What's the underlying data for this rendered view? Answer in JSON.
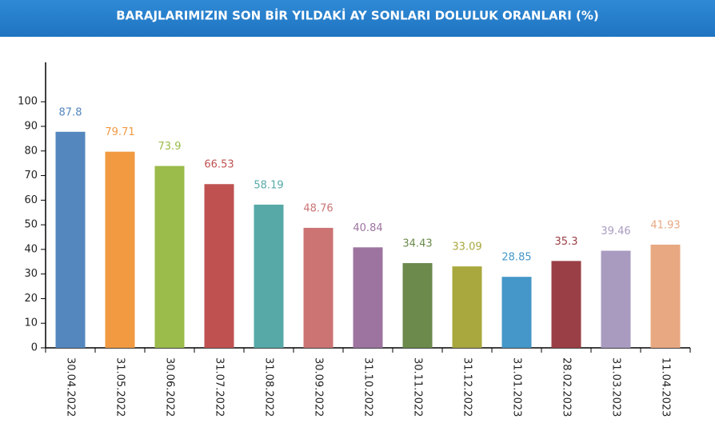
{
  "chart_data": {
    "type": "bar",
    "title": "BARAJLARIMIZIN SON BİR YILDAKİ AY SONLARI DOLULUK ORANLARI (%)",
    "categories": [
      "30.04.2022",
      "31.05.2022",
      "30.06.2022",
      "31.07.2022",
      "31.08.2022",
      "30.09.2022",
      "31.10.2022",
      "30.11.2022",
      "31.12.2022",
      "31.01.2023",
      "28.02.2023",
      "31.03.2023",
      "11.04.2023"
    ],
    "values": [
      87.8,
      79.71,
      73.9,
      66.53,
      58.19,
      48.76,
      40.84,
      34.43,
      33.09,
      28.85,
      35.3,
      39.46,
      41.93
    ],
    "colors": [
      "#5587bf",
      "#f19a42",
      "#9bbb4a",
      "#bf5251",
      "#57a9a8",
      "#cc7474",
      "#9d74a0",
      "#6b8a4c",
      "#a9a83e",
      "#4497c8",
      "#9a3f45",
      "#a99bc0",
      "#e8a882"
    ],
    "ylim": [
      0,
      116
    ],
    "yticks": [
      0,
      10,
      20,
      30,
      40,
      50,
      60,
      70,
      80,
      90,
      100
    ],
    "grid": false
  }
}
